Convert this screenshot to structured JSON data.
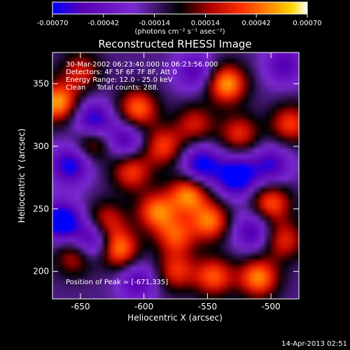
{
  "chart_data": {
    "type": "heatmap",
    "title": "Reconstructed RHESSI Image",
    "xlabel": "Heliocentric X (arcsec)",
    "ylabel": "Heliocentric Y (arcsec)",
    "xlim": [
      -672,
      -478
    ],
    "ylim": [
      178,
      375
    ],
    "xticks": [
      "-650",
      "-600",
      "-550",
      "-500"
    ],
    "xtick_values": [
      -650,
      -600,
      -550,
      -500
    ],
    "yticks": [
      "200",
      "250",
      "300",
      "350"
    ],
    "ytick_values": [
      200,
      250,
      300,
      350
    ],
    "colorbar": {
      "range": [
        -0.0007,
        0.0007
      ],
      "tick_labels": [
        "-0.00070",
        "-0.00042",
        "-0.00014",
        "0.00014",
        "0.00042",
        "0.00070"
      ],
      "tick_values": [
        -0.0007,
        -0.00042,
        -0.00014,
        0.00014,
        0.00042,
        0.0007
      ],
      "unit_label": "(photons cm⁻² s⁻¹ asec⁻²)",
      "colors": [
        "#0000ff",
        "#5a00b4",
        "#7a2ad0",
        "#000000",
        "#b00000",
        "#ff3000",
        "#ff9000",
        "#ffd800",
        "#ffffff"
      ]
    },
    "annotations": [
      "30-Mar-2002 06:23:40.000 to 06:23:56.000",
      "Detectors: 4F 5F 6F 7F 8F, Att 0",
      "Energy Range: 12.0 - 25.0 keV",
      "Clean     Total counts: 288."
    ],
    "peak_label": "Position of Peak = [-671,335]",
    "grid": false,
    "sources": [
      {
        "x": -605,
        "y": 330,
        "v": 0.0006
      },
      {
        "x": -640,
        "y": 304,
        "v": 0.00045
      },
      {
        "x": -610,
        "y": 280,
        "v": 0.0005
      },
      {
        "x": -585,
        "y": 300,
        "v": 0.0005
      },
      {
        "x": -565,
        "y": 262,
        "v": 0.00065
      },
      {
        "x": -590,
        "y": 248,
        "v": 0.0006
      },
      {
        "x": -620,
        "y": 218,
        "v": 0.00065
      },
      {
        "x": -630,
        "y": 240,
        "v": 0.00045
      },
      {
        "x": -575,
        "y": 228,
        "v": 0.0005
      },
      {
        "x": -548,
        "y": 240,
        "v": 0.0006
      },
      {
        "x": -535,
        "y": 350,
        "v": 0.0007
      },
      {
        "x": -525,
        "y": 310,
        "v": 0.00045
      },
      {
        "x": -485,
        "y": 318,
        "v": 0.0005
      },
      {
        "x": -500,
        "y": 255,
        "v": 0.00055
      },
      {
        "x": -510,
        "y": 195,
        "v": 0.00065
      },
      {
        "x": -545,
        "y": 196,
        "v": 0.00055
      },
      {
        "x": -575,
        "y": 200,
        "v": 0.00045
      },
      {
        "x": -668,
        "y": 335,
        "v": 0.0007
      },
      {
        "x": -655,
        "y": 212,
        "v": 0.0004
      },
      {
        "x": -560,
        "y": 318,
        "v": 0.0004
      },
      {
        "x": -490,
        "y": 225,
        "v": 0.00045
      },
      {
        "x": -650,
        "y": 360,
        "v": 0.0004
      },
      {
        "x": -640,
        "y": 225,
        "v": -0.00055
      },
      {
        "x": -665,
        "y": 240,
        "v": -0.0007
      },
      {
        "x": -640,
        "y": 320,
        "v": -0.0006
      },
      {
        "x": -615,
        "y": 305,
        "v": -0.00045
      },
      {
        "x": -658,
        "y": 285,
        "v": -0.00055
      },
      {
        "x": -555,
        "y": 285,
        "v": -0.0006
      },
      {
        "x": -527,
        "y": 276,
        "v": -0.0007
      },
      {
        "x": -500,
        "y": 285,
        "v": -0.00045
      },
      {
        "x": -605,
        "y": 192,
        "v": -0.0004
      },
      {
        "x": -515,
        "y": 232,
        "v": -0.00045
      },
      {
        "x": -560,
        "y": 360,
        "v": -0.0004
      },
      {
        "x": -490,
        "y": 365,
        "v": -0.0004
      }
    ]
  },
  "footer": {
    "date_stamp": "14-Apr-2013 02:51"
  }
}
